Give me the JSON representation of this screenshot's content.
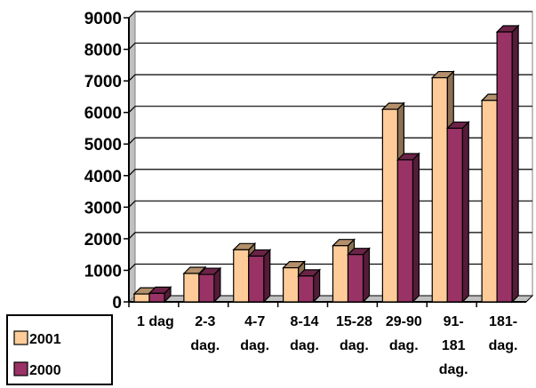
{
  "chart_data": {
    "type": "bar",
    "style": "3d-clustered-column",
    "categories": [
      [
        "1 dag"
      ],
      [
        "2-3",
        "dag."
      ],
      [
        "4-7",
        "dag."
      ],
      [
        "8-14",
        "dag."
      ],
      [
        "15-28",
        "dag."
      ],
      [
        "29-90",
        "dag."
      ],
      [
        "91-",
        "181",
        "dag."
      ],
      [
        "181-",
        "dag."
      ]
    ],
    "series": [
      {
        "name": "2001",
        "color": "#FFCC99",
        "values": [
          250,
          900,
          1650,
          1080,
          1780,
          6100,
          7100,
          6380
        ]
      },
      {
        "name": "2000",
        "color": "#993366",
        "values": [
          270,
          870,
          1450,
          820,
          1500,
          4500,
          5500,
          8550
        ]
      }
    ],
    "ylim": [
      0,
      9000
    ],
    "yticks": [
      "0",
      "1000",
      "2000",
      "3000",
      "4000",
      "5000",
      "6000",
      "7000",
      "8000",
      "9000"
    ],
    "grid": true,
    "legend_position": "bottom-left"
  }
}
